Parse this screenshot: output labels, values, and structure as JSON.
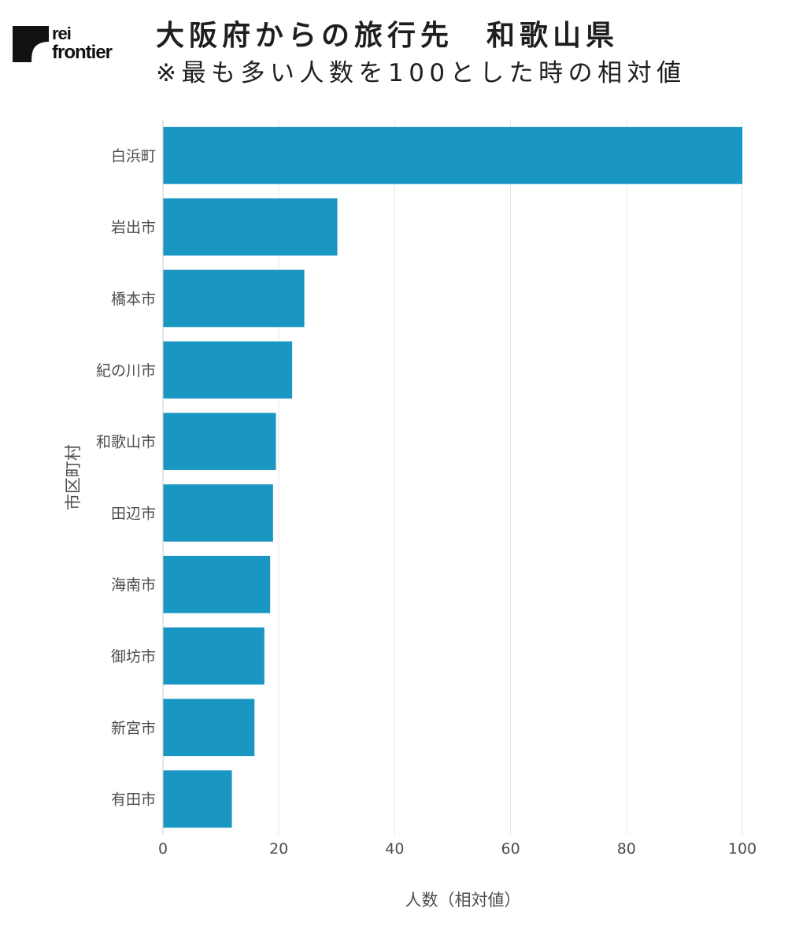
{
  "logo": {
    "line1": "rei",
    "line2": "frontier"
  },
  "title": "大阪府からの旅行先　和歌山県",
  "subtitle": "※最も多い人数を100とした時の相対値",
  "colors": {
    "bar": "#1a96c2",
    "grid": "#e6e6e6",
    "axis_text": "#4d4d4d",
    "title": "#1f1f1f"
  },
  "chart_data": {
    "type": "bar",
    "orientation": "horizontal",
    "categories": [
      "白浜町",
      "岩出市",
      "橋本市",
      "紀の川市",
      "和歌山市",
      "田辺市",
      "海南市",
      "御坊市",
      "新宮市",
      "有田市"
    ],
    "values": [
      100,
      30.1,
      24.4,
      22.3,
      19.5,
      19.0,
      18.5,
      17.5,
      15.8,
      11.9
    ],
    "xlabel": "人数（相対値）",
    "ylabel": "市区町村",
    "xlim": [
      0,
      100
    ],
    "xticks": [
      "0",
      "20",
      "40",
      "60",
      "80",
      "100"
    ],
    "xtick_values": [
      0,
      20,
      40,
      60,
      80,
      100
    ],
    "grid": true,
    "legend": false
  }
}
